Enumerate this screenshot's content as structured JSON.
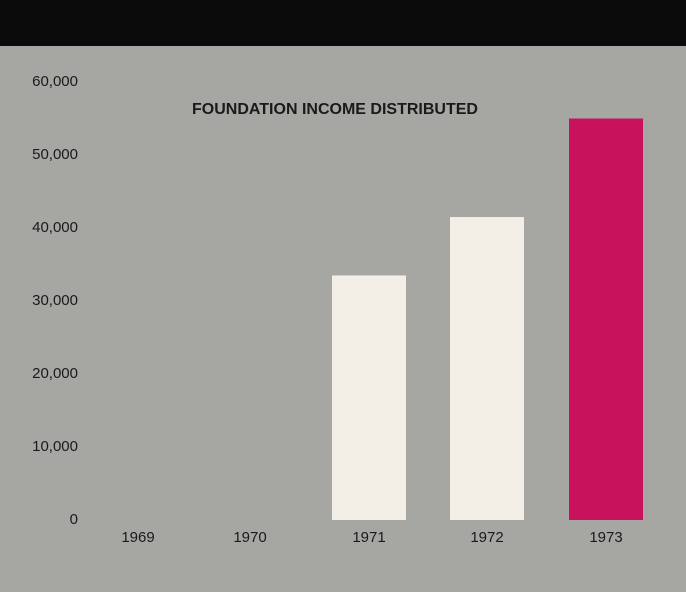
{
  "chart_data": {
    "type": "bar",
    "title": "FOUNDATION INCOME DISTRIBUTED",
    "categories": [
      "1969",
      "1970",
      "1971",
      "1972",
      "1973"
    ],
    "values": [
      0,
      0,
      33500,
      41500,
      55000
    ],
    "colors": [
      "#f3efe6",
      "#f3efe6",
      "#f3efe6",
      "#f3efe6",
      "#c8135c"
    ],
    "ylim": [
      0,
      60000
    ],
    "yticks": [
      0,
      {
        "value": 10000,
        "label": "10,000"
      },
      {
        "value": 20000,
        "label": "20,000"
      },
      {
        "value": 30000,
        "label": "30,000"
      },
      {
        "value": 40000,
        "label": "40,000"
      },
      {
        "value": 50000,
        "label": "50,000"
      },
      {
        "value": 60000,
        "label": "60,000"
      }
    ],
    "grid": false
  }
}
